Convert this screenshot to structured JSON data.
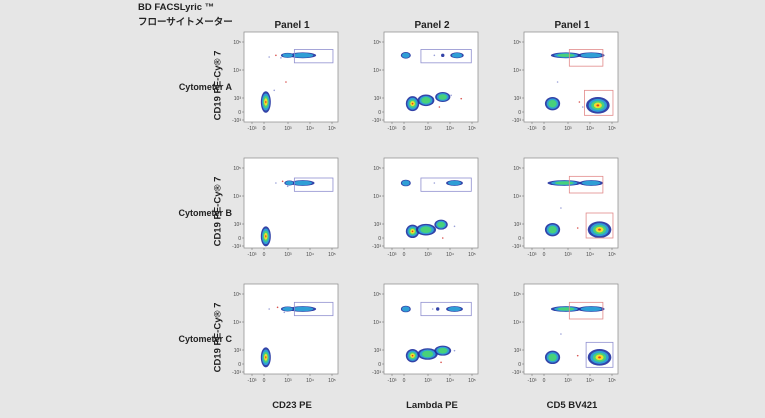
{
  "header": {
    "line1": "BD FACSLyric ™",
    "line2": "フローサイトメーター"
  },
  "columns": [
    "Panel 1",
    "Panel 2",
    "Panel 1"
  ],
  "rows": [
    "Cytometer A",
    "Cytometer B",
    "Cytometer C"
  ],
  "ylabel": "CD19 PE-Cy® 7",
  "xlabels": [
    "CD23 PE",
    "Lambda PE",
    "CD5 BV421"
  ],
  "colors": {
    "background": "#e6e6e6",
    "gate": "#8f8fcf",
    "gate_warm": "#e28a8a"
  },
  "chart_data": {
    "type": "scatter",
    "x_ticks": [
      "-10³",
      "0",
      "10³",
      "10⁴",
      "10⁵"
    ],
    "y_ticks": [
      "-10³",
      "0",
      "10³",
      "10⁴",
      "10⁵"
    ],
    "scale": "biexponential",
    "grid": false
  }
}
